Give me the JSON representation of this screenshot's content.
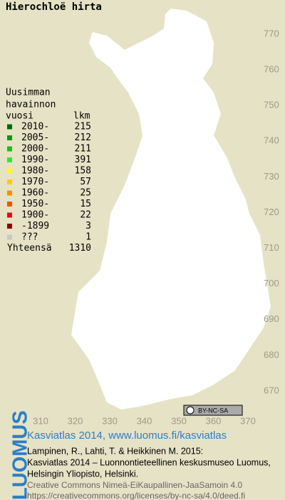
{
  "header": {
    "title": "Hierochloë hirta"
  },
  "legend": {
    "heading": [
      "Uusimman",
      "havainnon",
      "vuosi"
    ],
    "count_heading": "lkm",
    "entries": [
      {
        "label": "2010-",
        "count": 215,
        "color": "#006a00"
      },
      {
        "label": "2005-",
        "count": 212,
        "color": "#149414"
      },
      {
        "label": "2000-",
        "count": 211,
        "color": "#20b820"
      },
      {
        "label": "1990-",
        "count": 391,
        "color": "#3ce03c"
      },
      {
        "label": "1980-",
        "count": 158,
        "color": "#ffff00"
      },
      {
        "label": "1970-",
        "count": 57,
        "color": "#ffcc00"
      },
      {
        "label": "1960-",
        "count": 25,
        "color": "#ff8c00"
      },
      {
        "label": "1950-",
        "count": 15,
        "color": "#ff5000"
      },
      {
        "label": "1900-",
        "count": 22,
        "color": "#d81010"
      },
      {
        "label": "-1899",
        "count": 3,
        "color": "#8a0000"
      },
      {
        "label": "???",
        "count": 1,
        "color": "#c8c8c8"
      }
    ],
    "total_label": "Yhteensä",
    "total": 1310
  },
  "map": {
    "yticks": [
      770,
      760,
      750,
      740,
      730,
      720,
      710,
      700,
      690,
      680,
      670
    ],
    "xticks": [
      310,
      320,
      330,
      340,
      350,
      360,
      370
    ],
    "license_badge": "BY-NC-SA"
  },
  "footer": {
    "brand": "LUOMUS",
    "headline": "Kasviatlas 2014, www.luomus.fi/kasviatlas",
    "citation": [
      "Lampinen, R., Lahti, T. & Heikkinen M. 2015:",
      "Kasviatlas 2014 – Luonnontieteellinen keskusmuseo Luomus,",
      "Helsingin Yliopisto, Helsinki."
    ],
    "license": [
      "Creative Commons Nimeä-EiKaupallinen-JaaSamoin 4.0",
      "https://creativecommons.org/licenses/by-nc-sa/4.0/deed.fi"
    ]
  }
}
